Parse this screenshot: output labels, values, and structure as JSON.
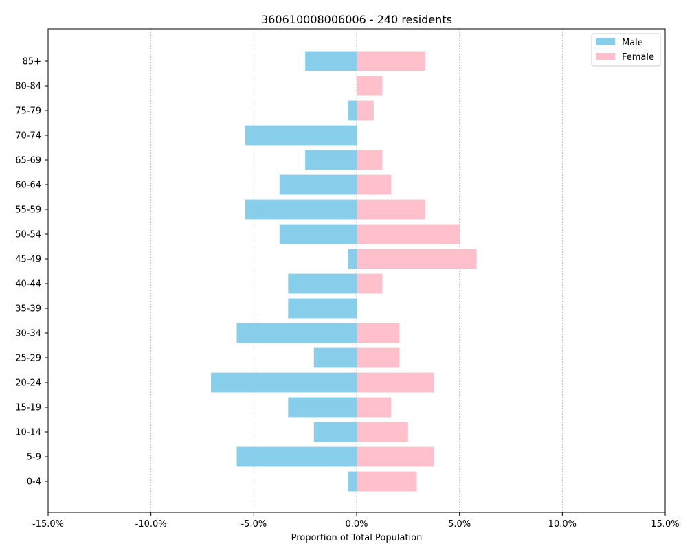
{
  "chart_data": {
    "type": "bar",
    "orientation": "horizontal",
    "title": "360610008006006 - 240 residents",
    "xlabel": "Proportion of Total Population",
    "ylabel": "",
    "categories": [
      "0-4",
      "5-9",
      "10-14",
      "15-19",
      "20-24",
      "25-29",
      "30-34",
      "35-39",
      "40-44",
      "45-49",
      "50-54",
      "55-59",
      "60-64",
      "65-69",
      "70-74",
      "75-79",
      "80-84",
      "85+"
    ],
    "series": [
      {
        "name": "Male",
        "color": "#87ceeb",
        "values": [
          -0.42,
          -5.83,
          -2.08,
          -3.33,
          -7.08,
          -2.08,
          -5.83,
          -3.33,
          -3.33,
          -0.42,
          -3.75,
          -5.42,
          -3.75,
          -2.5,
          -5.42,
          -0.42,
          0,
          -2.5
        ]
      },
      {
        "name": "Female",
        "color": "#ffc0cb",
        "values": [
          2.92,
          3.75,
          2.5,
          1.67,
          3.75,
          2.08,
          2.08,
          0,
          1.25,
          5.83,
          5.0,
          3.33,
          1.67,
          1.25,
          0,
          0.83,
          1.25,
          3.33
        ]
      }
    ],
    "xlim": [
      -15,
      15
    ],
    "xticks": [
      -15,
      -10,
      -5,
      0,
      5,
      10,
      15
    ],
    "xtick_labels": [
      "-15.0%",
      "-10.0%",
      "-5.0%",
      "0.0%",
      "5.0%",
      "10.0%",
      "15.0%"
    ],
    "grid": "vertical dashed",
    "legend_position": "top-right"
  }
}
